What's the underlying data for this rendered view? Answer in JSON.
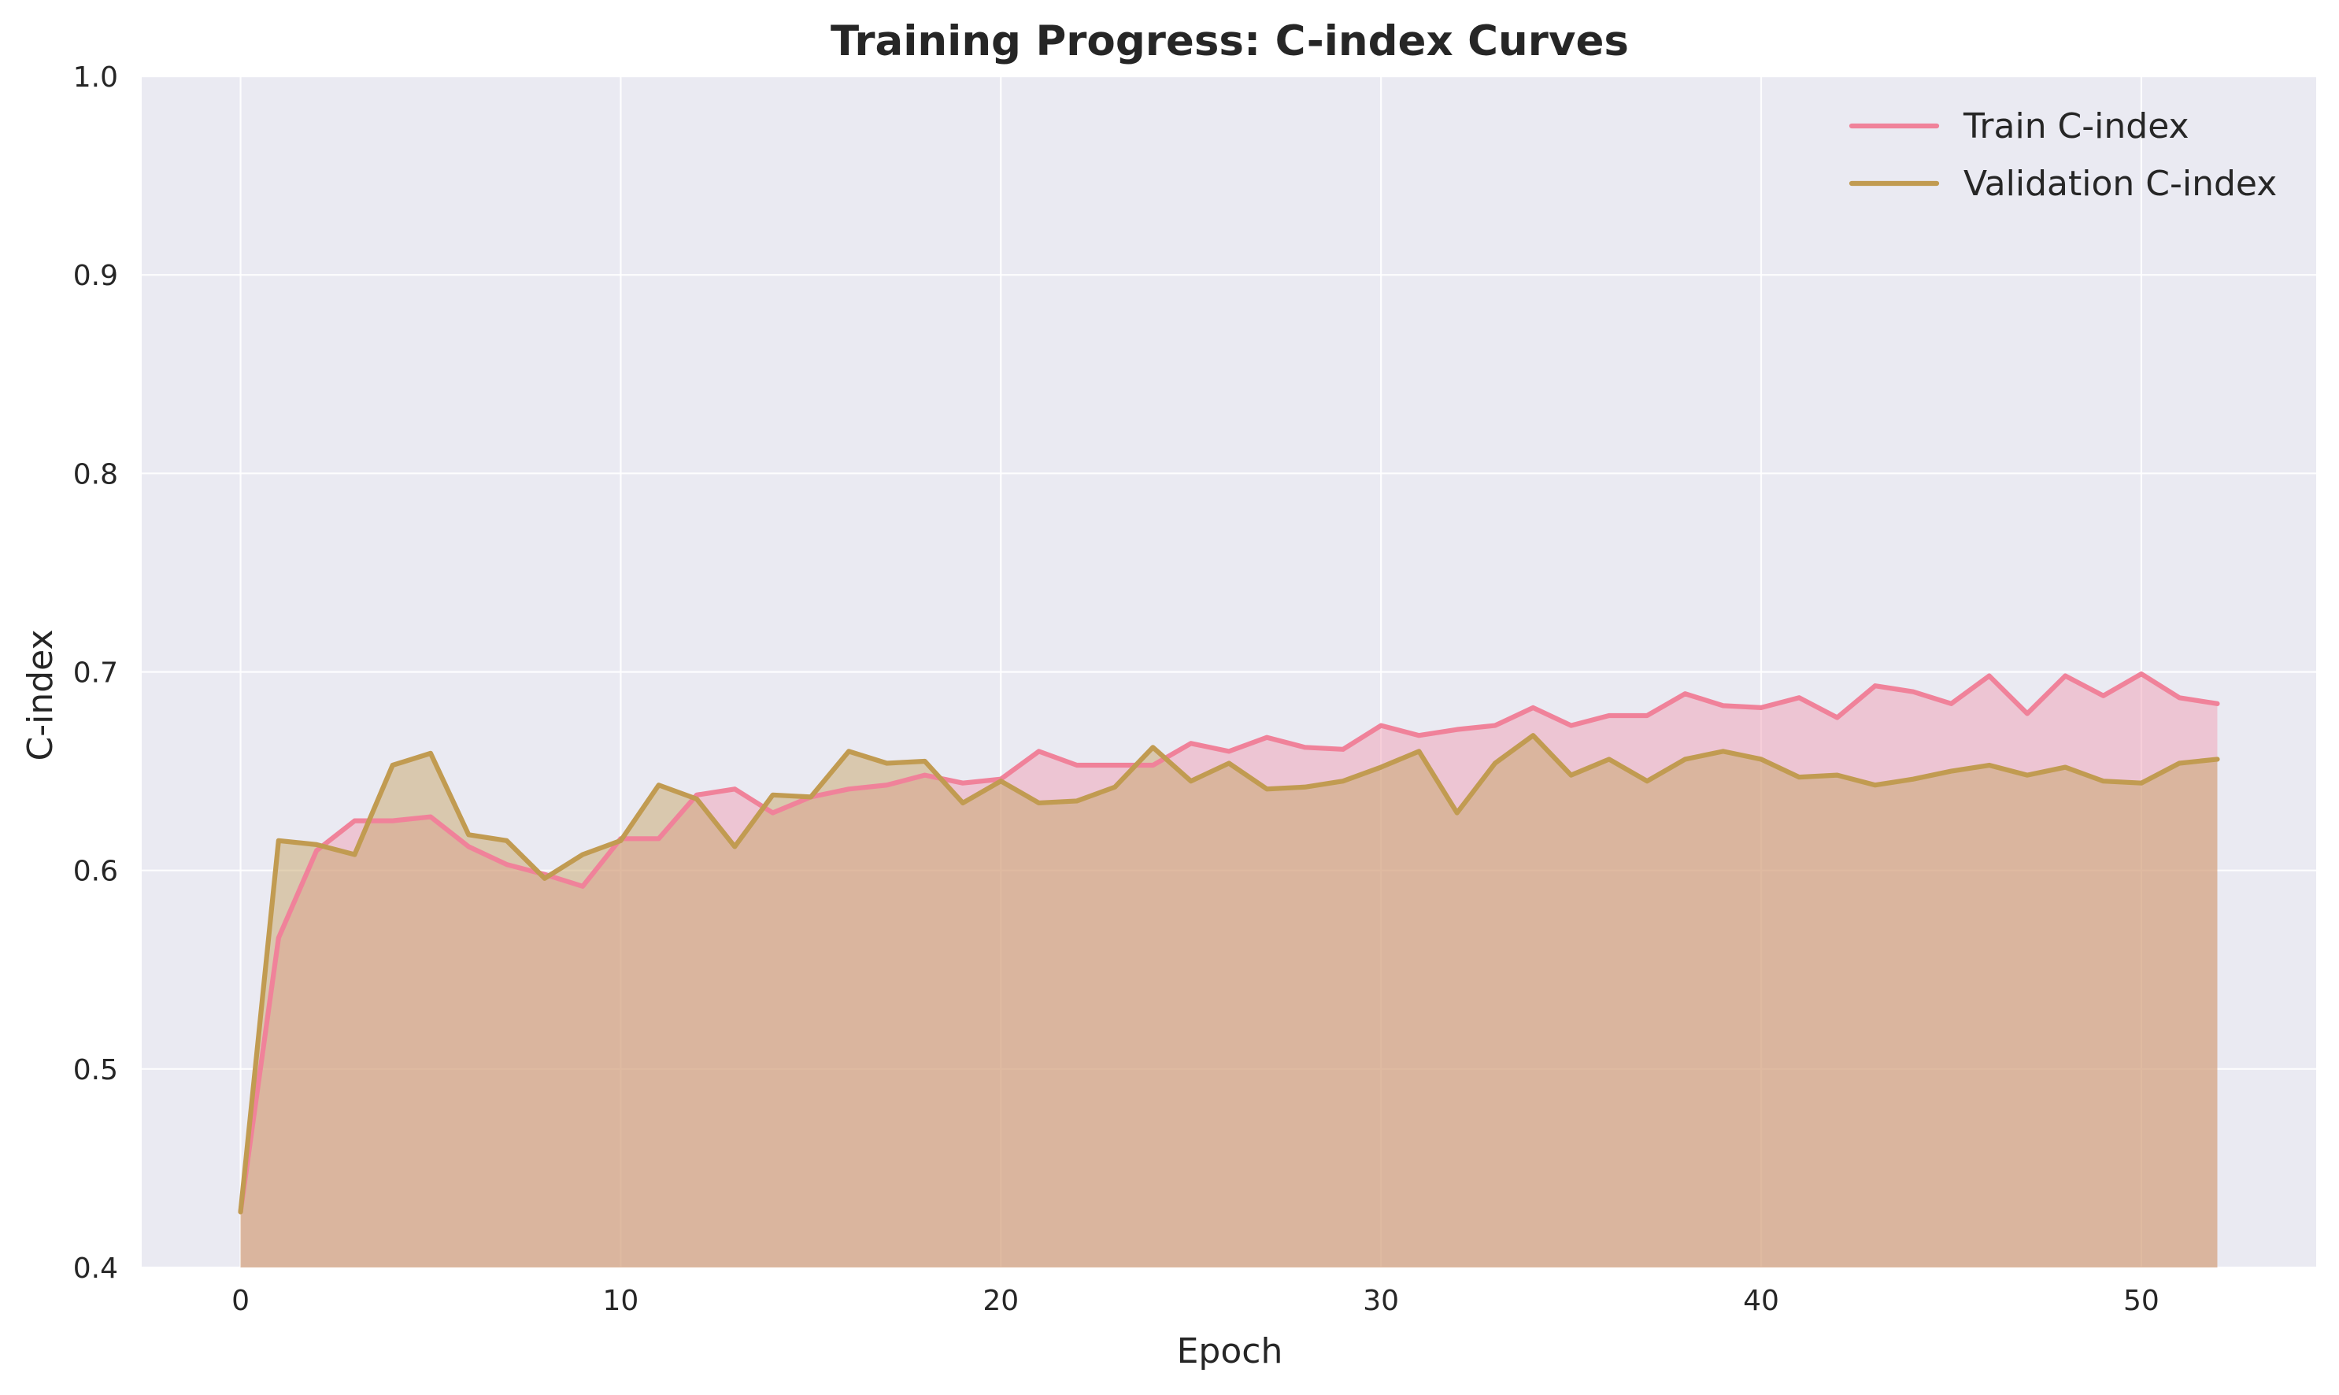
{
  "chart_data": {
    "type": "line",
    "title": "Training Progress: C-index Curves",
    "xlabel": "Epoch",
    "ylabel": "C-index",
    "xlim": [
      -2.6,
      54.6
    ],
    "ylim": [
      0.4,
      1.0
    ],
    "x_ticks": [
      0,
      10,
      20,
      30,
      40,
      50
    ],
    "y_ticks": [
      0.4,
      0.5,
      0.6,
      0.7,
      0.8,
      0.9,
      1.0
    ],
    "y_tick_labels": [
      "0.4",
      "0.5",
      "0.6",
      "0.7",
      "0.8",
      "0.9",
      "1.0"
    ],
    "grid": true,
    "legend_position": "top-right",
    "area_fill": true,
    "x": [
      0,
      1,
      2,
      3,
      4,
      5,
      6,
      7,
      8,
      9,
      10,
      11,
      12,
      13,
      14,
      15,
      16,
      17,
      18,
      19,
      20,
      21,
      22,
      23,
      24,
      25,
      26,
      27,
      28,
      29,
      30,
      31,
      32,
      33,
      34,
      35,
      36,
      37,
      38,
      39,
      40,
      41,
      42,
      43,
      44,
      45,
      46,
      47,
      48,
      49,
      50,
      51,
      52
    ],
    "series": [
      {
        "name": "Train C-index",
        "color": "#f0829a",
        "fill_color": "#f0a0b4",
        "values": [
          0.428,
          0.566,
          0.61,
          0.625,
          0.625,
          0.627,
          0.612,
          0.603,
          0.598,
          0.592,
          0.616,
          0.616,
          0.638,
          0.641,
          0.629,
          0.637,
          0.641,
          0.643,
          0.648,
          0.644,
          0.646,
          0.66,
          0.653,
          0.653,
          0.653,
          0.664,
          0.66,
          0.667,
          0.662,
          0.661,
          0.673,
          0.668,
          0.671,
          0.673,
          0.682,
          0.673,
          0.678,
          0.678,
          0.689,
          0.683,
          0.682,
          0.687,
          0.677,
          0.693,
          0.69,
          0.684,
          0.698,
          0.679,
          0.698,
          0.688,
          0.699,
          0.687,
          0.684
        ]
      },
      {
        "name": "Validation C-index",
        "color": "#c19b51",
        "fill_color": "#c8a56a",
        "values": [
          0.428,
          0.615,
          0.613,
          0.608,
          0.653,
          0.659,
          0.618,
          0.615,
          0.596,
          0.608,
          0.615,
          0.643,
          0.636,
          0.612,
          0.638,
          0.637,
          0.66,
          0.654,
          0.655,
          0.634,
          0.645,
          0.634,
          0.635,
          0.642,
          0.662,
          0.645,
          0.654,
          0.641,
          0.642,
          0.645,
          0.652,
          0.66,
          0.629,
          0.654,
          0.668,
          0.648,
          0.656,
          0.645,
          0.656,
          0.66,
          0.656,
          0.647,
          0.648,
          0.643,
          0.646,
          0.65,
          0.653,
          0.648,
          0.652,
          0.645,
          0.644,
          0.654,
          0.656
        ]
      }
    ]
  }
}
